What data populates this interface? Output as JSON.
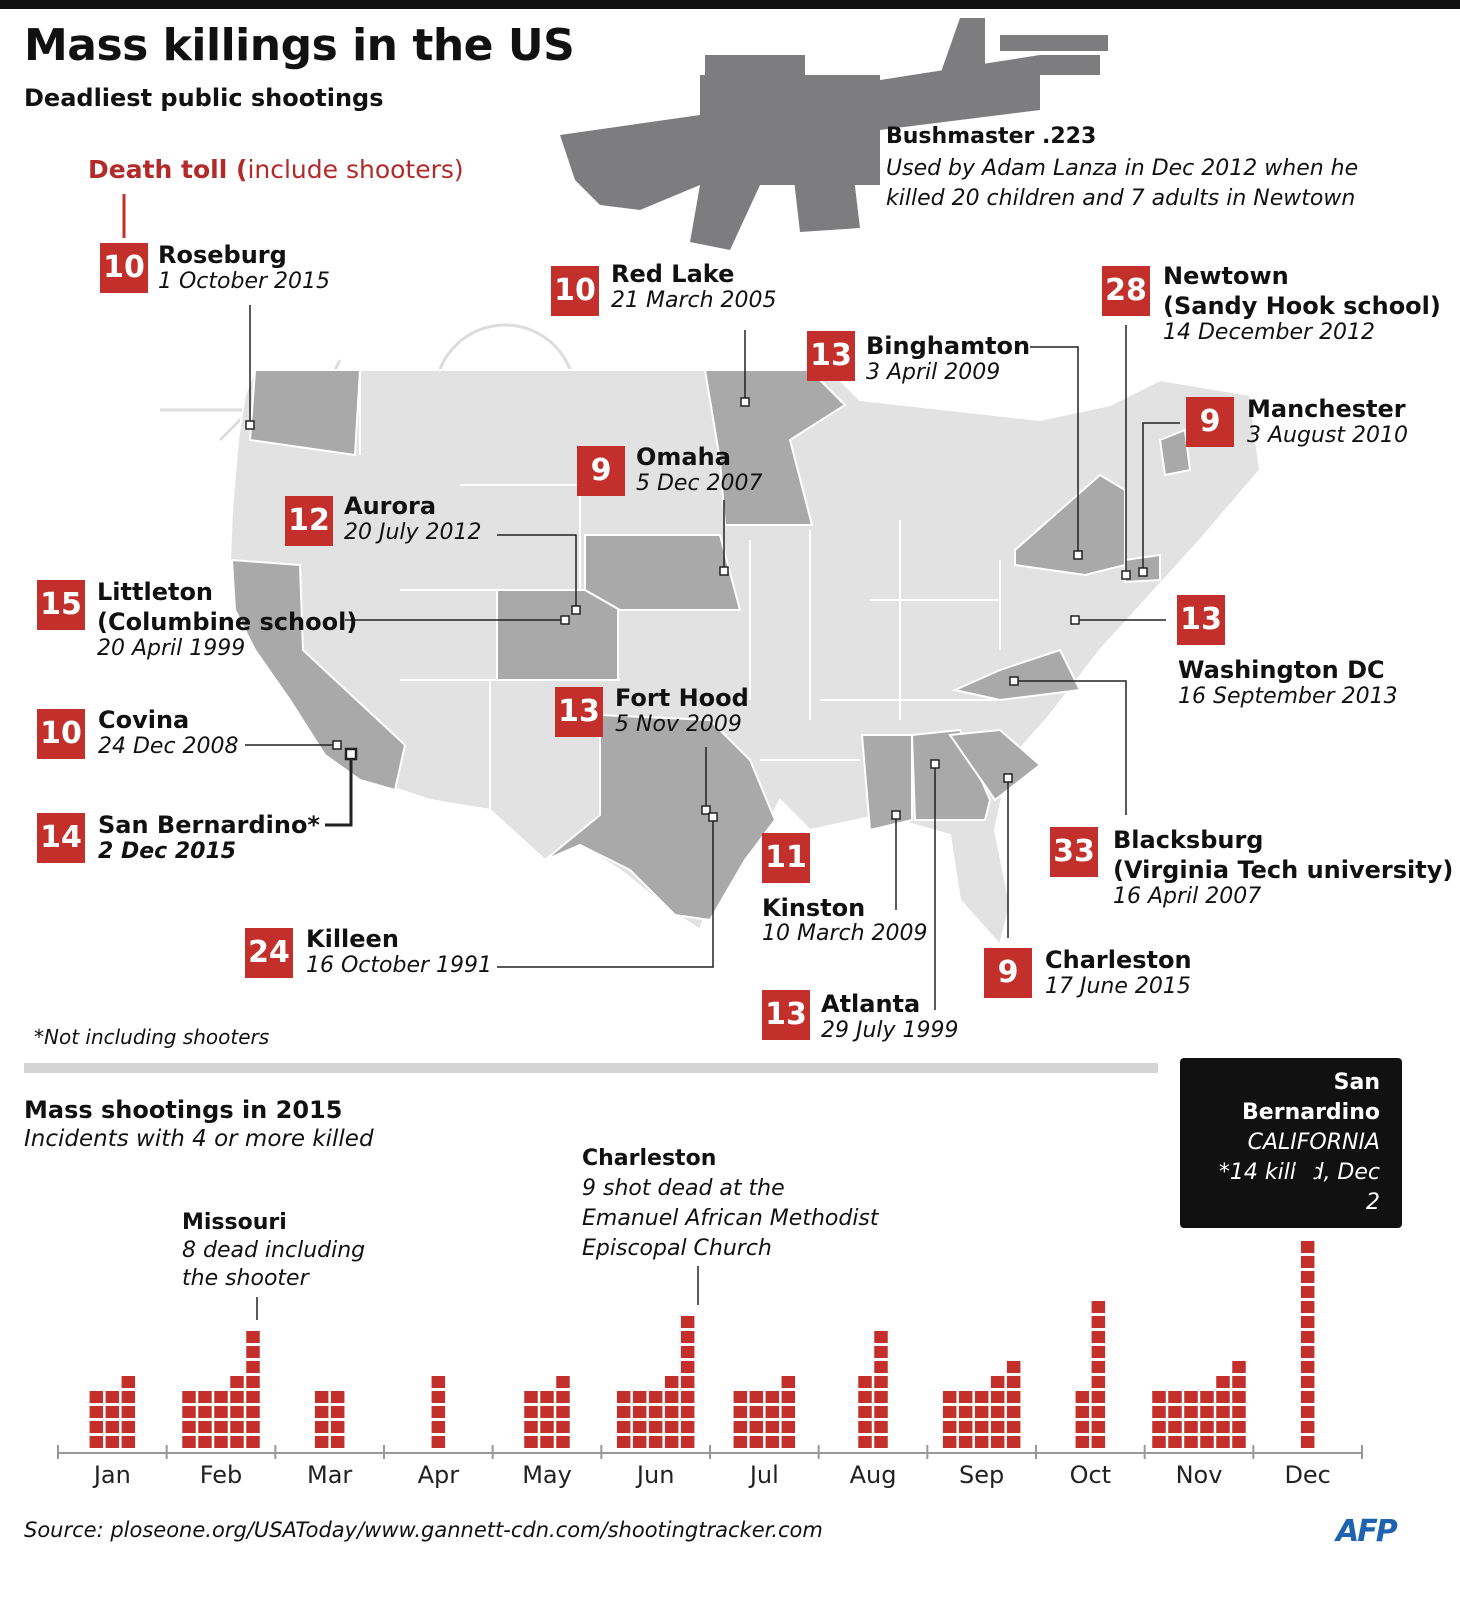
{
  "header": {
    "title": "Mass killings in the US",
    "subtitle": "Deadliest public shootings"
  },
  "legend": {
    "label_bold": "Death toll (",
    "label_rest": "include shooters)"
  },
  "weapon": {
    "name": "Bushmaster .223",
    "desc_line1": "Used by Adam Lanza in Dec 2012 when he",
    "desc_line2": "killed 20 children and 7 adults in Newtown"
  },
  "colors": {
    "badge": "#c3302c",
    "bar": "#c3302c",
    "highlight_state": "#a8a8a8",
    "state": "#e0e0e0"
  },
  "shootings": [
    {
      "toll": "10",
      "city": "Roseburg",
      "date": "1 October 2015"
    },
    {
      "toll": "10",
      "city": "Red Lake",
      "date": "21 March 2005"
    },
    {
      "toll": "13",
      "city": "Binghamton",
      "date": "3 April 2009"
    },
    {
      "toll": "28",
      "city": "Newtown",
      "city2": "(Sandy Hook school)",
      "date": "14 December 2012"
    },
    {
      "toll": "9",
      "city": "Manchester",
      "date": "3 August 2010"
    },
    {
      "toll": "9",
      "city": "Omaha",
      "date": "5 Dec 2007"
    },
    {
      "toll": "12",
      "city": "Aurora",
      "date": "20 July 2012"
    },
    {
      "toll": "15",
      "city": "Littleton",
      "city2": "(Columbine school)",
      "date": "20 April 1999"
    },
    {
      "toll": "13",
      "city": "Washington DC",
      "date": "16 September 2013"
    },
    {
      "toll": "10",
      "city": "Covina",
      "date": "24 Dec 2008"
    },
    {
      "toll": "13",
      "city": "Fort Hood",
      "date": "5 Nov 2009"
    },
    {
      "toll": "14",
      "city": "San Bernardino*",
      "date": "2 Dec 2015"
    },
    {
      "toll": "11",
      "city": "Kinston",
      "date": "10 March 2009"
    },
    {
      "toll": "33",
      "city": "Blacksburg",
      "city2": "(Virginia Tech university)",
      "date": "16 April 2007"
    },
    {
      "toll": "24",
      "city": "Killeen",
      "date": "16 October 1991"
    },
    {
      "toll": "9",
      "city": "Charleston",
      "date": "17 June 2015"
    },
    {
      "toll": "13",
      "city": "Atlanta",
      "date": "29 July 1999"
    }
  ],
  "footnote": "*Not including shooters",
  "chart_data": {
    "type": "bar",
    "title": "Mass shootings in 2015",
    "subtitle": "Incidents with 4 or more killed",
    "categories": [
      "Jan",
      "Feb",
      "Mar",
      "Apr",
      "May",
      "Jun",
      "Jul",
      "Aug",
      "Sep",
      "Oct",
      "Nov",
      "Dec"
    ],
    "series": [
      {
        "values": [
          [
            4,
            4,
            5
          ],
          [
            4,
            4,
            4,
            5,
            8
          ],
          [
            4,
            4
          ],
          [
            5
          ],
          [
            4,
            4,
            5
          ],
          [
            4,
            4,
            4,
            5,
            9
          ],
          [
            4,
            4,
            4,
            5
          ],
          [
            5,
            8
          ],
          [
            4,
            4,
            4,
            5,
            6
          ],
          [
            4,
            10
          ],
          [
            4,
            4,
            4,
            4,
            5,
            6
          ],
          [
            14
          ]
        ]
      }
    ],
    "annotations": [
      {
        "title": "Missouri",
        "line1": "8 dead including",
        "line2": "the shooter"
      },
      {
        "title": "Charleston",
        "line1": "9 shot dead at the",
        "line2": "Emanuel African Methodist",
        "line3": "Episcopal Church"
      },
      {
        "title": "San Bernardino",
        "line1": "CALIFORNIA",
        "line2": "*14 killed, Dec 2"
      }
    ]
  },
  "footer": {
    "source": "Source: ploseone.org/USAToday/www.gannett-cdn.com/shootingtracker.com",
    "logo": "AFP"
  }
}
